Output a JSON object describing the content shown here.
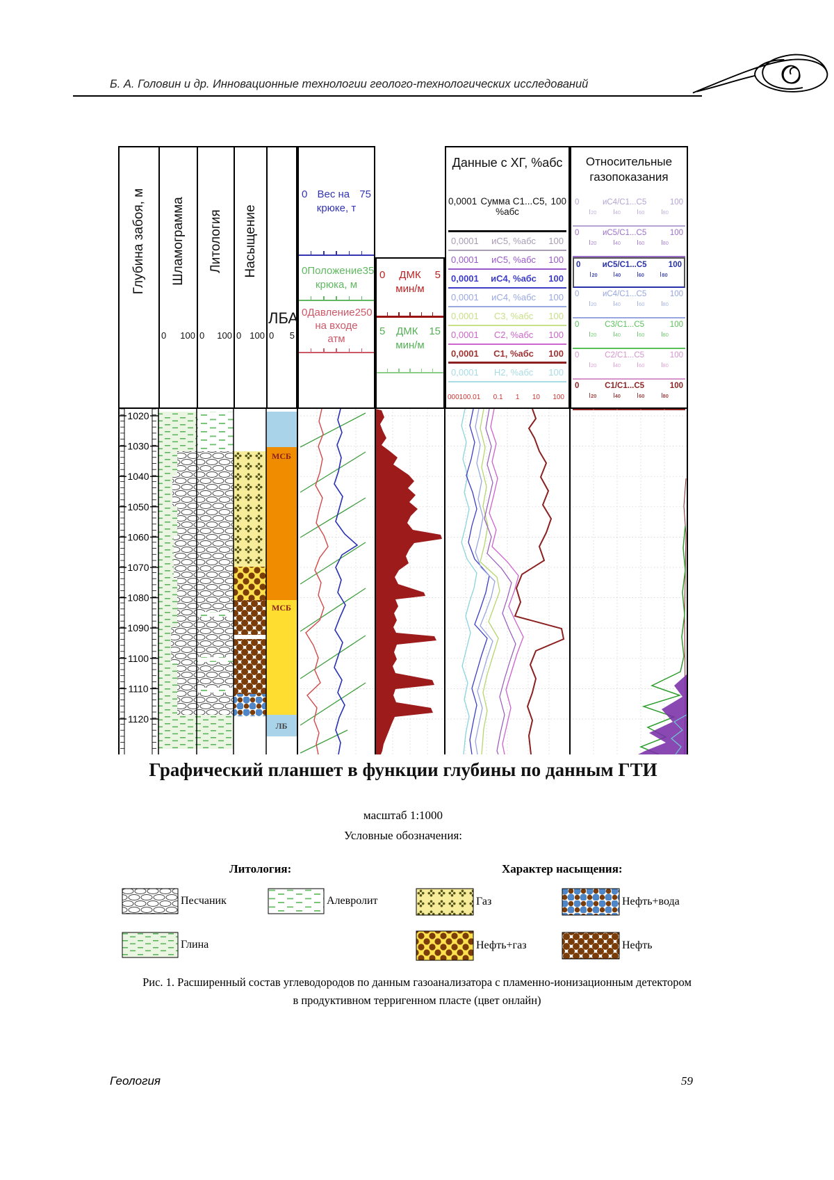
{
  "page": {
    "running_header": "Б. А. Головин и др.  Инновационные технологии геолого-технологических исследований",
    "main_title": "Графический планшет в функции глубины по данным ГТИ",
    "scale_note": "масштаб 1:1000",
    "legend_heading": "Условные обозначения:",
    "caption_line1": "Рис. 1. Расширенный состав углеводородов по данным газоанализатора с пламенно-ионизационным детектором",
    "caption_line2": "в продуктивном терригенном пласте (цвет онлайн)",
    "footer_left": "Геология",
    "footer_page": "59"
  },
  "left_tracks": {
    "depth_label": "Глубина забоя, м",
    "shlam_label": "Шламограмма",
    "lith_label": "Литология",
    "sat_label": "Насыщение",
    "lba_label": "ЛБА",
    "scale_min": "0",
    "scale_max": "100",
    "lba_min": "0",
    "lba_max": "5"
  },
  "hook": {
    "rows": [
      {
        "min": "0",
        "name": "Вес на",
        "max": "75",
        "name2": "крюке, т",
        "color": "#3434b0"
      },
      {
        "min": "0",
        "name": "Положение",
        "max": "35",
        "name2": "крюка, м",
        "color": "#62b862"
      },
      {
        "min": "0",
        "name": "Давление",
        "max": "250",
        "name2": "на входе",
        "name3": "атм",
        "color": "#cc5868"
      }
    ]
  },
  "dmk": {
    "rows": [
      {
        "min": "0",
        "name": "ДМК",
        "max": "5",
        "unit": "мин/м",
        "color": "#bb2222"
      },
      {
        "min": "5",
        "name": "ДМК",
        "max": "15",
        "unit": "мин/м",
        "color": "#55b055"
      }
    ]
  },
  "hg": {
    "title": "Данные с ХГ, %абс",
    "sum_min": "0,0001",
    "sum_name": "Сумма С1...С5,",
    "sum_max": "100",
    "sum_unit": "%абс",
    "log_ticks": [
      "000100.01",
      "0.1",
      "1",
      "10",
      "100"
    ],
    "rows": [
      {
        "min": "0,0001",
        "name": "иС5, %абс",
        "max": "100",
        "color": "#a89cb4"
      },
      {
        "min": "0,0001",
        "name": "иС5, %абс",
        "max": "100",
        "color": "#9958c8"
      },
      {
        "min": "0,0001",
        "name": "иС4, %абс",
        "max": "100",
        "color": "#3c3cc8"
      },
      {
        "min": "0,0001",
        "name": "иС4, %абс",
        "max": "100",
        "color": "#9aa8e0"
      },
      {
        "min": "0,0001",
        "name": "С3, %абс",
        "max": "100",
        "color": "#c8e088"
      },
      {
        "min": "0,0001",
        "name": "С2, %абс",
        "max": "100",
        "color": "#cc66cc"
      },
      {
        "min": "0,0001",
        "name": "С1, %абс",
        "max": "100",
        "color": "#a03434"
      },
      {
        "min": "0,0001",
        "name": "Н2, %абс",
        "max": "100",
        "color": "#a8dce4"
      }
    ]
  },
  "rel": {
    "title1": "Относительные",
    "title2": "газопоказания",
    "ticks": [
      "20",
      "40",
      "60",
      "80"
    ],
    "rows": [
      {
        "min": "0",
        "name": "иС4/С1...С5",
        "max": "100",
        "color": "#b4a4d4"
      },
      {
        "min": "0",
        "name": "иС5/С1...С5",
        "max": "100",
        "color": "#9b6fc8"
      },
      {
        "min": "0",
        "name": "иС5/С1...С5",
        "max": "100",
        "color": "#2830a8"
      },
      {
        "min": "0",
        "name": "иС4/С1...С5",
        "max": "100",
        "color": "#97a6de"
      },
      {
        "min": "0",
        "name": "С3/С1...С5",
        "max": "100",
        "color": "#58c058"
      },
      {
        "min": "0",
        "name": "С2/С1...С5",
        "max": "100",
        "color": "#d694cc"
      },
      {
        "min": "0",
        "name": "С1/С1...С5",
        "max": "100",
        "color": "#8e2424"
      }
    ]
  },
  "plot": {
    "depth_labels": [
      "1020",
      "1030",
      "1040",
      "1050",
      "1060",
      "1070",
      "1080",
      "1090",
      "1100",
      "1110",
      "1120"
    ],
    "lithology_intervals": [
      {
        "top_m": 1019,
        "base_m": 1032,
        "lithology": "алевролит"
      },
      {
        "top_m": 1032,
        "base_m": 1119,
        "lithology": "песчаник"
      },
      {
        "top_m": 1119,
        "base_m": 1130,
        "lithology": "глина"
      }
    ],
    "saturation_intervals": [
      {
        "top_m": 1032,
        "base_m": 1070,
        "saturation": "газ"
      },
      {
        "top_m": 1070,
        "base_m": 1081,
        "saturation": "нефть+газ"
      },
      {
        "top_m": 1081,
        "base_m": 1112,
        "saturation": "нефть"
      },
      {
        "top_m": 1112,
        "base_m": 1119,
        "saturation": "нефть+вода"
      }
    ],
    "lba_blocks": [
      {
        "top_m": 1019,
        "base_m": 1030,
        "label": ""
      },
      {
        "top_m": 1030,
        "base_m": 1081,
        "label": "МСБ"
      },
      {
        "top_m": 1081,
        "base_m": 1119,
        "label": "МСБ"
      },
      {
        "top_m": 1119,
        "base_m": 1126,
        "label": "ЛБ"
      }
    ]
  },
  "legend": {
    "lithology_title": "Литология:",
    "saturation_title": "Характер насыщения:",
    "items": [
      {
        "label": "Песчаник",
        "pattern": "sand"
      },
      {
        "label": "Алевролит",
        "pattern": "silt"
      },
      {
        "label": "Глина",
        "pattern": "clay"
      },
      {
        "label": "Газ",
        "pattern": "gas"
      },
      {
        "label": "Нефть+вода",
        "pattern": "oilwater"
      },
      {
        "label": "Нефть+газ",
        "pattern": "oilgas"
      },
      {
        "label": "Нефть",
        "pattern": "oil"
      }
    ]
  }
}
